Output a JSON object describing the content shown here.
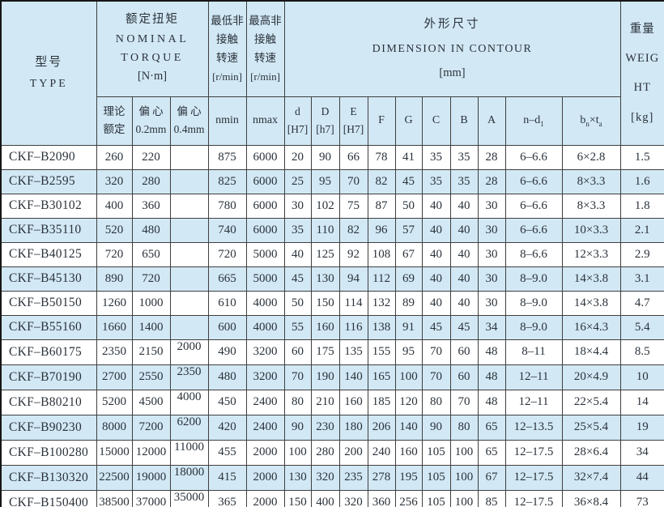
{
  "colors": {
    "band_blue": "#d2e8f5",
    "row_white": "#ffffff",
    "border": "#3f3f3f",
    "outer_border": "#161616",
    "text": "#2a323a"
  },
  "header": {
    "type": [
      "型号",
      "TYPE"
    ],
    "torque": [
      "额定扭矩",
      "NOMINAL",
      "TORQUE",
      "[N·m]"
    ],
    "nmin_group": [
      "最低非",
      "接触",
      "转速",
      "[r/min]"
    ],
    "nmax_group": [
      "最高非",
      "接触",
      "转速",
      "[r/min]"
    ],
    "dimension": [
      "外形尺寸",
      "DIMENSION IN CONTOUR",
      "[mm]"
    ],
    "weight": [
      "重量",
      "WEIG",
      "HT",
      "[kg]"
    ],
    "sub": {
      "t_theory": [
        "理论",
        "额定"
      ],
      "t_ecc02": [
        "偏 心",
        "0.2mm"
      ],
      "t_ecc04": [
        "偏 心",
        "0.4mm"
      ],
      "nmin": "nmin",
      "nmax": "nmax",
      "d": [
        "d",
        "[H7]"
      ],
      "D": [
        "D",
        "[h7]"
      ],
      "E": [
        "E",
        "[H7]"
      ],
      "F": "F",
      "G": "G",
      "C": "C",
      "B": "B",
      "A": "A",
      "n_d1": {
        "base": "n–d",
        "sub": "1"
      },
      "bn_ta": {
        "b": "b",
        "b_sub": "n",
        "times": "×",
        "t": "t",
        "t_sub": "a"
      }
    }
  },
  "table": {
    "columns": [
      "type",
      "torque_theoretical",
      "torque_ecc_0_2mm",
      "torque_ecc_0_4mm",
      "nmin",
      "nmax",
      "d",
      "D",
      "E",
      "F",
      "G",
      "C",
      "B",
      "A",
      "n-d1",
      "bn-x-ta",
      "weight"
    ],
    "rows": [
      [
        "CKF–B2090",
        "260",
        "220",
        "",
        "875",
        "6000",
        "20",
        "90",
        "66",
        "78",
        "41",
        "35",
        "35",
        "28",
        "6–6.6",
        "6×2.8",
        "1.5"
      ],
      [
        "CKF–B2595",
        "320",
        "280",
        "",
        "825",
        "6000",
        "25",
        "95",
        "70",
        "82",
        "45",
        "35",
        "35",
        "28",
        "6–6.6",
        "8×3.3",
        "1.6"
      ],
      [
        "CKF–B30102",
        "400",
        "360",
        "",
        "780",
        "6000",
        "30",
        "102",
        "75",
        "87",
        "50",
        "40",
        "40",
        "30",
        "6–6.6",
        "8×3.3",
        "1.8"
      ],
      [
        "CKF–B35110",
        "520",
        "480",
        "",
        "740",
        "6000",
        "35",
        "110",
        "82",
        "96",
        "57",
        "40",
        "40",
        "30",
        "6–6.6",
        "10×3.3",
        "2.1"
      ],
      [
        "CKF–B40125",
        "720",
        "650",
        "",
        "720",
        "5000",
        "40",
        "125",
        "92",
        "108",
        "67",
        "40",
        "40",
        "30",
        "8–6.6",
        "12×3.3",
        "2.9"
      ],
      [
        "CKF–B45130",
        "890",
        "720",
        "",
        "665",
        "5000",
        "45",
        "130",
        "94",
        "112",
        "69",
        "40",
        "40",
        "30",
        "8–9.0",
        "14×3.8",
        "3.1"
      ],
      [
        "CKF–B50150",
        "1260",
        "1000",
        "",
        "610",
        "4000",
        "50",
        "150",
        "114",
        "132",
        "89",
        "40",
        "40",
        "30",
        "8–9.0",
        "14×3.8",
        "4.7"
      ],
      [
        "CKF–B55160",
        "1660",
        "1400",
        "",
        "600",
        "4000",
        "55",
        "160",
        "116",
        "138",
        "91",
        "45",
        "45",
        "34",
        "8–9.0",
        "16×4.3",
        "5.4"
      ],
      [
        "CKF–B60175",
        "2350",
        "2150",
        "2000",
        "490",
        "3200",
        "60",
        "175",
        "135",
        "155",
        "95",
        "70",
        "60",
        "48",
        "8–11",
        "18×4.4",
        "8.5"
      ],
      [
        "CKF–B70190",
        "2700",
        "2550",
        "2350",
        "480",
        "3200",
        "70",
        "190",
        "140",
        "165",
        "100",
        "70",
        "60",
        "48",
        "12–11",
        "20×4.9",
        "10"
      ],
      [
        "CKF–B80210",
        "5200",
        "4500",
        "4000",
        "450",
        "2400",
        "80",
        "210",
        "160",
        "185",
        "120",
        "80",
        "70",
        "48",
        "12–11",
        "22×5.4",
        "14"
      ],
      [
        "CKF–B90230",
        "8000",
        "7200",
        "6200",
        "420",
        "2400",
        "90",
        "230",
        "180",
        "206",
        "140",
        "90",
        "80",
        "65",
        "12–13.5",
        "25×5.4",
        "19"
      ],
      [
        "CKF–B100280",
        "15000",
        "12000",
        "11000",
        "455",
        "2000",
        "100",
        "280",
        "200",
        "240",
        "160",
        "105",
        "100",
        "65",
        "12–17.5",
        "28×6.4",
        "34"
      ],
      [
        "CKF–B130320",
        "22500",
        "19000",
        "18000",
        "415",
        "2000",
        "130",
        "320",
        "235",
        "278",
        "195",
        "105",
        "100",
        "67",
        "12–17.5",
        "32×7.4",
        "44"
      ],
      [
        "CKF–B150400",
        "38500",
        "37000",
        "35000",
        "365",
        "2000",
        "150",
        "400",
        "320",
        "360",
        "256",
        "105",
        "100",
        "85",
        "12–17.5",
        "36×8.4",
        "73"
      ]
    ]
  }
}
